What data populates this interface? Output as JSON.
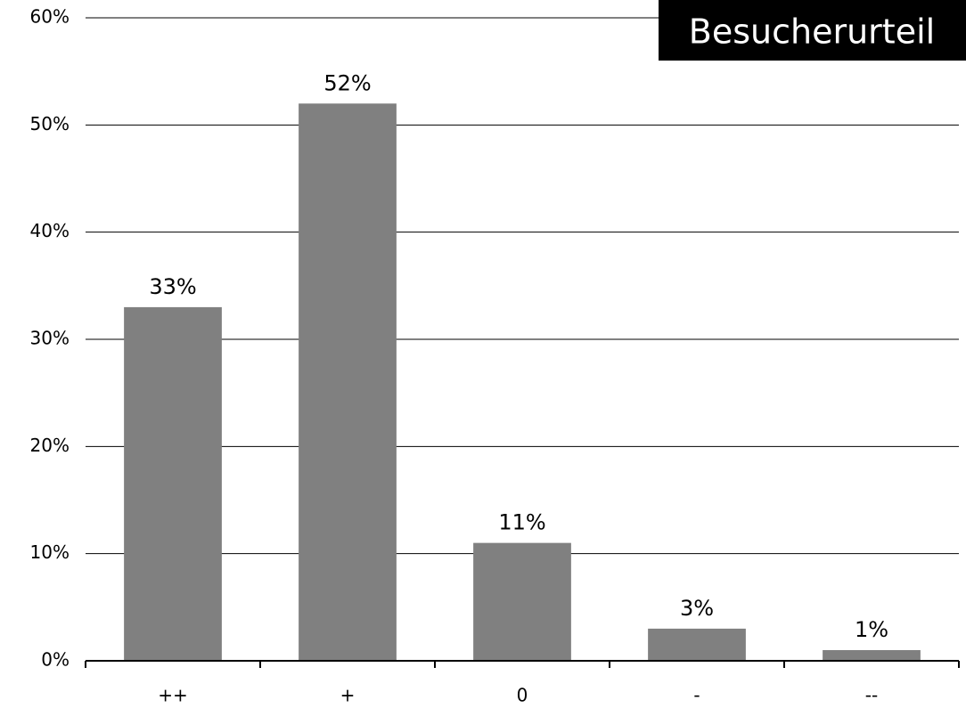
{
  "chart_data": {
    "type": "bar",
    "title": "Besucherurteil",
    "categories": [
      "++",
      "+",
      "0",
      "-",
      "--"
    ],
    "values": [
      33,
      52,
      11,
      3,
      1
    ],
    "data_labels": [
      "33%",
      "52%",
      "11%",
      "3%",
      "1%"
    ],
    "y_ticks": [
      0,
      10,
      20,
      30,
      40,
      50,
      60
    ],
    "y_tick_labels": [
      "0%",
      "10%",
      "20%",
      "30%",
      "40%",
      "50%",
      "60%"
    ],
    "xlabel": "",
    "ylabel": "",
    "ylim": [
      0,
      60
    ],
    "grid": true,
    "legend": "none",
    "title_placement": "top-right",
    "colors": {
      "bar": "#808080",
      "grid": "#000000",
      "axis": "#000000",
      "title_bg": "#000000",
      "title_text": "#ffffff"
    }
  }
}
